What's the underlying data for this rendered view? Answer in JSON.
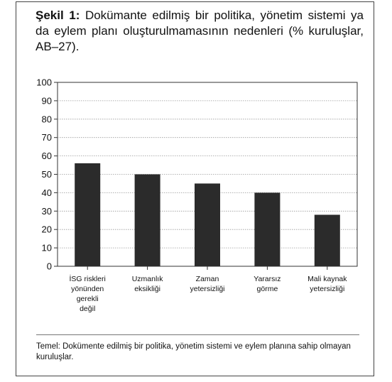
{
  "figure": {
    "title_prefix": "Şekil 1:",
    "title_rest": "Dokümante edilmiş bir politika, yönetim sistemi ya da eylem planı oluşturulmamasının nedenleri (% kuruluşlar, AB–27).",
    "note": "Temel: Dokümente edilmiş bir politika, yönetim sistemi ve eylem planına sahip olmayan kuruluşlar."
  },
  "chart_data": {
    "type": "bar",
    "categories": [
      [
        "İSG riskleri",
        "yönünden",
        "gerekli",
        "değil"
      ],
      [
        "Uzmanlık",
        "eksikliği"
      ],
      [
        "Zaman",
        "yetersizliği"
      ],
      [
        "Yararsız",
        "görme"
      ],
      [
        "Mali kaynak",
        "yetersizliği"
      ]
    ],
    "values": [
      56,
      50,
      45,
      40,
      28
    ],
    "ylim": [
      0,
      100
    ],
    "yticks": [
      0,
      10,
      20,
      30,
      40,
      50,
      60,
      70,
      80,
      90,
      100
    ],
    "grid": true,
    "legend": "none",
    "colors": {
      "bar": "#2b2b2b",
      "grid": "#9a9a9a",
      "axis": "#333333"
    }
  }
}
